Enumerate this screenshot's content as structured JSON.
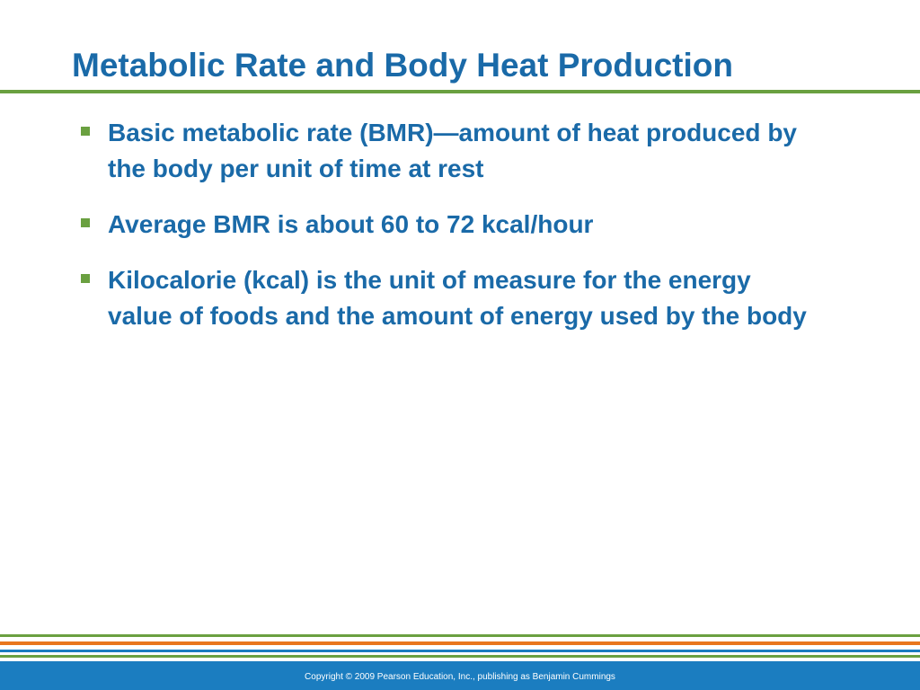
{
  "header": {
    "title": "Metabolic Rate and Body Heat Production"
  },
  "bullets": [
    "Basic metabolic rate (BMR)—amount of heat produced by the body per unit of time at rest",
    "Average BMR is about 60 to 72 kcal/hour",
    "Kilocalorie (kcal) is the unit of measure for the energy value of foods and the amount of energy used by the body"
  ],
  "footer": {
    "copyright": "Copyright © 2009 Pearson Education, Inc., publishing as Benjamin Cummings"
  }
}
